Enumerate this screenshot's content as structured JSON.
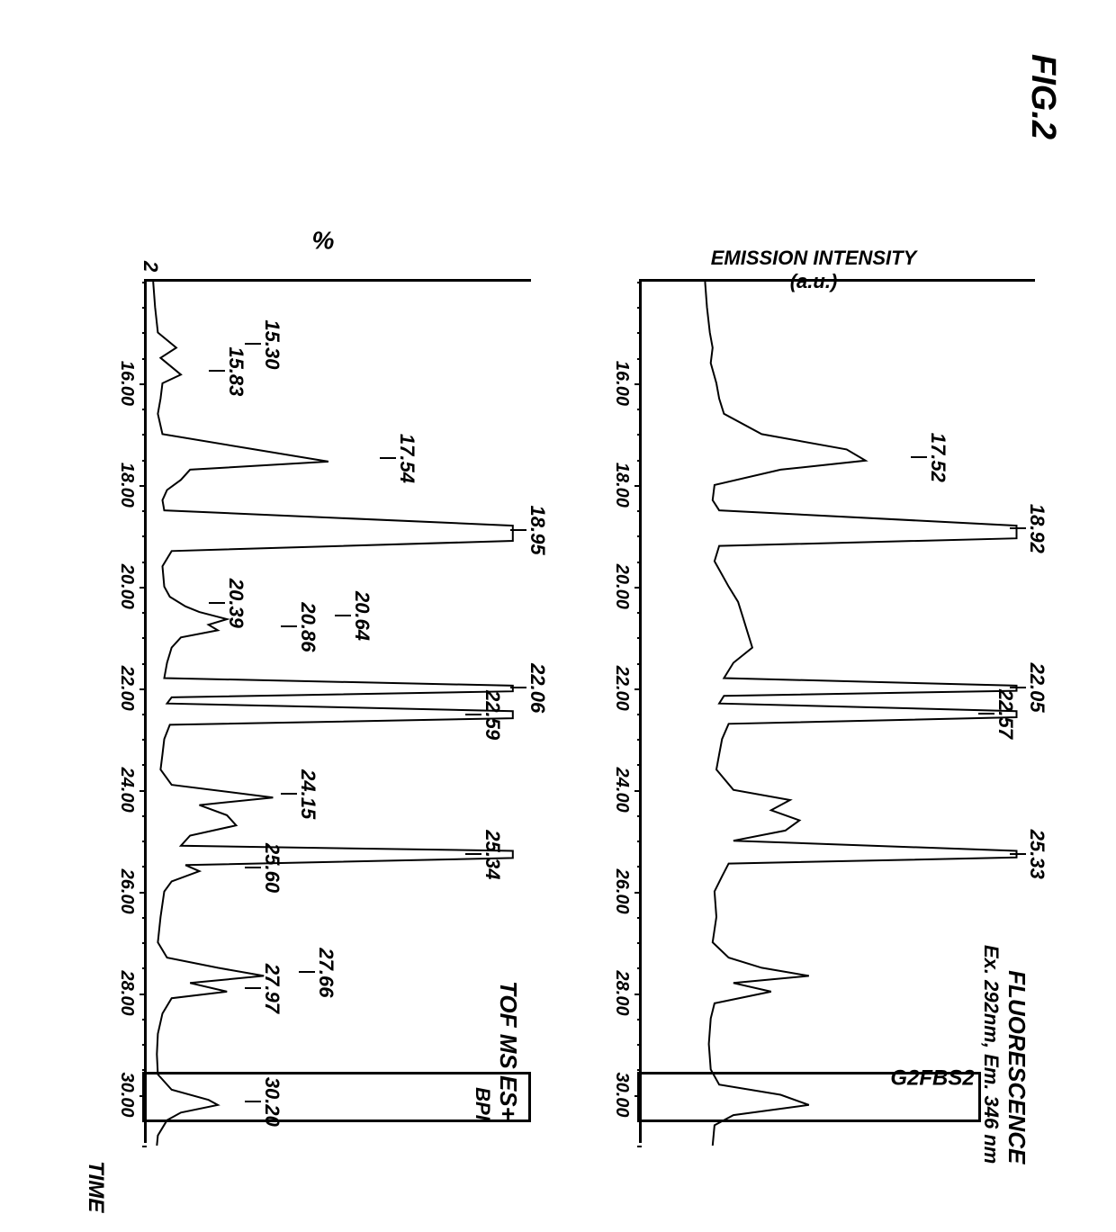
{
  "figure_label": "FIG.2",
  "top_chart": {
    "title": "FLUORESCENCE",
    "subtitle": "Ex. 292nm, Em. 346 nm",
    "title_fontsize": 26,
    "subtitle_fontsize": 22,
    "ylabel": "EMISSION INTENSITY",
    "ylabel_unit": "(a.u.)",
    "xlim": [
      14,
      31
    ],
    "xtick_step": 2,
    "xticks": [
      "16.00",
      "18.00",
      "20.00",
      "22.00",
      "24.00",
      "26.00",
      "28.00",
      "30.00"
    ],
    "line_color": "#000000",
    "line_width": 2,
    "background_color": "#ffffff",
    "highlight": {
      "label": "G2FBS2",
      "x_start": 29.6,
      "x_end": 30.6
    },
    "peak_labels": [
      {
        "x": 17.52,
        "text": "17.52",
        "y_off": 120
      },
      {
        "x": 18.92,
        "text": "18.92",
        "y_off": 10
      },
      {
        "x": 22.05,
        "text": "22.05",
        "y_off": 10
      },
      {
        "x": 22.57,
        "text": "22.57",
        "y_off": 45
      },
      {
        "x": 25.33,
        "text": "25.33",
        "y_off": 10
      }
    ],
    "trace": [
      [
        14.0,
        70
      ],
      [
        14.5,
        72
      ],
      [
        15.0,
        75
      ],
      [
        15.3,
        78
      ],
      [
        15.6,
        76
      ],
      [
        16.0,
        82
      ],
      [
        16.3,
        85
      ],
      [
        16.6,
        90
      ],
      [
        17.0,
        130
      ],
      [
        17.3,
        220
      ],
      [
        17.52,
        240
      ],
      [
        17.7,
        150
      ],
      [
        18.0,
        80
      ],
      [
        18.3,
        78
      ],
      [
        18.5,
        85
      ],
      [
        18.8,
        400
      ],
      [
        18.92,
        400
      ],
      [
        19.05,
        400
      ],
      [
        19.2,
        85
      ],
      [
        19.5,
        80
      ],
      [
        20.0,
        95
      ],
      [
        20.3,
        105
      ],
      [
        20.6,
        110
      ],
      [
        20.9,
        115
      ],
      [
        21.2,
        120
      ],
      [
        21.5,
        100
      ],
      [
        21.8,
        90
      ],
      [
        21.95,
        400
      ],
      [
        22.05,
        400
      ],
      [
        22.15,
        90
      ],
      [
        22.3,
        85
      ],
      [
        22.45,
        400
      ],
      [
        22.57,
        400
      ],
      [
        22.7,
        95
      ],
      [
        23.0,
        88
      ],
      [
        23.3,
        85
      ],
      [
        23.6,
        82
      ],
      [
        24.0,
        100
      ],
      [
        24.2,
        160
      ],
      [
        24.4,
        140
      ],
      [
        24.6,
        170
      ],
      [
        24.8,
        155
      ],
      [
        25.0,
        100
      ],
      [
        25.2,
        400
      ],
      [
        25.33,
        400
      ],
      [
        25.45,
        95
      ],
      [
        25.7,
        88
      ],
      [
        26.0,
        80
      ],
      [
        26.5,
        82
      ],
      [
        27.0,
        78
      ],
      [
        27.3,
        95
      ],
      [
        27.5,
        130
      ],
      [
        27.66,
        180
      ],
      [
        27.8,
        100
      ],
      [
        27.97,
        140
      ],
      [
        28.2,
        80
      ],
      [
        28.5,
        76
      ],
      [
        29.0,
        74
      ],
      [
        29.5,
        76
      ],
      [
        29.8,
        85
      ],
      [
        30.0,
        150
      ],
      [
        30.2,
        180
      ],
      [
        30.4,
        100
      ],
      [
        30.6,
        80
      ],
      [
        31.0,
        78
      ]
    ]
  },
  "bottom_chart": {
    "title": "TOF MS ES+",
    "subtitle": "BPI",
    "ylabel": "%",
    "xaxis_title": "TIME",
    "xlim": [
      14,
      31
    ],
    "xtick_step": 2,
    "xticks": [
      "16.00",
      "18.00",
      "20.00",
      "22.00",
      "24.00",
      "26.00",
      "28.00",
      "30.00"
    ],
    "yticks": [
      "2"
    ],
    "line_color": "#000000",
    "line_width": 2,
    "background_color": "#ffffff",
    "highlight": {
      "x_start": 29.6,
      "x_end": 30.6
    },
    "peak_labels": [
      {
        "x": 15.3,
        "text": "15.30",
        "y_off": 300
      },
      {
        "x": 15.83,
        "text": "15.83",
        "y_off": 340
      },
      {
        "x": 17.54,
        "text": "17.54",
        "y_off": 150
      },
      {
        "x": 18.95,
        "text": "18.95",
        "y_off": 5
      },
      {
        "x": 20.39,
        "text": "20.39",
        "y_off": 340
      },
      {
        "x": 20.64,
        "text": "20.64",
        "y_off": 200
      },
      {
        "x": 20.86,
        "text": "20.86",
        "y_off": 260
      },
      {
        "x": 22.06,
        "text": "22.06",
        "y_off": 5
      },
      {
        "x": 22.59,
        "text": "22.59",
        "y_off": 55
      },
      {
        "x": 24.15,
        "text": "24.15",
        "y_off": 260
      },
      {
        "x": 25.34,
        "text": "25.34",
        "y_off": 55
      },
      {
        "x": 25.6,
        "text": "25.60",
        "y_off": 300
      },
      {
        "x": 27.66,
        "text": "27.66",
        "y_off": 240
      },
      {
        "x": 27.97,
        "text": "27.97",
        "y_off": 300
      },
      {
        "x": 30.2,
        "text": "30.20",
        "y_off": 300
      }
    ],
    "trace": [
      [
        14.0,
        10
      ],
      [
        14.5,
        12
      ],
      [
        15.0,
        15
      ],
      [
        15.3,
        35
      ],
      [
        15.5,
        18
      ],
      [
        15.83,
        40
      ],
      [
        16.0,
        20
      ],
      [
        16.3,
        18
      ],
      [
        16.6,
        15
      ],
      [
        17.0,
        20
      ],
      [
        17.3,
        120
      ],
      [
        17.54,
        200
      ],
      [
        17.7,
        50
      ],
      [
        17.9,
        40
      ],
      [
        18.1,
        25
      ],
      [
        18.3,
        20
      ],
      [
        18.5,
        22
      ],
      [
        18.8,
        400
      ],
      [
        18.95,
        400
      ],
      [
        19.1,
        400
      ],
      [
        19.3,
        30
      ],
      [
        19.6,
        20
      ],
      [
        20.0,
        22
      ],
      [
        20.2,
        28
      ],
      [
        20.39,
        45
      ],
      [
        20.5,
        60
      ],
      [
        20.64,
        90
      ],
      [
        20.75,
        70
      ],
      [
        20.86,
        80
      ],
      [
        21.0,
        40
      ],
      [
        21.2,
        30
      ],
      [
        21.5,
        25
      ],
      [
        21.8,
        22
      ],
      [
        21.95,
        400
      ],
      [
        22.06,
        400
      ],
      [
        22.18,
        30
      ],
      [
        22.3,
        25
      ],
      [
        22.45,
        400
      ],
      [
        22.59,
        400
      ],
      [
        22.72,
        28
      ],
      [
        23.0,
        22
      ],
      [
        23.3,
        20
      ],
      [
        23.6,
        18
      ],
      [
        23.9,
        30
      ],
      [
        24.15,
        140
      ],
      [
        24.3,
        60
      ],
      [
        24.5,
        90
      ],
      [
        24.7,
        100
      ],
      [
        24.9,
        50
      ],
      [
        25.1,
        40
      ],
      [
        25.2,
        400
      ],
      [
        25.34,
        400
      ],
      [
        25.48,
        45
      ],
      [
        25.6,
        60
      ],
      [
        25.8,
        30
      ],
      [
        26.0,
        22
      ],
      [
        26.5,
        18
      ],
      [
        27.0,
        15
      ],
      [
        27.3,
        25
      ],
      [
        27.5,
        80
      ],
      [
        27.66,
        130
      ],
      [
        27.8,
        50
      ],
      [
        27.97,
        90
      ],
      [
        28.1,
        30
      ],
      [
        28.4,
        20
      ],
      [
        28.8,
        15
      ],
      [
        29.2,
        14
      ],
      [
        29.6,
        15
      ],
      [
        29.9,
        30
      ],
      [
        30.1,
        70
      ],
      [
        30.2,
        80
      ],
      [
        30.35,
        40
      ],
      [
        30.5,
        25
      ],
      [
        30.8,
        15
      ],
      [
        31.0,
        14
      ]
    ]
  },
  "colors": {
    "background": "#ffffff",
    "axis": "#000000",
    "text": "#000000"
  }
}
